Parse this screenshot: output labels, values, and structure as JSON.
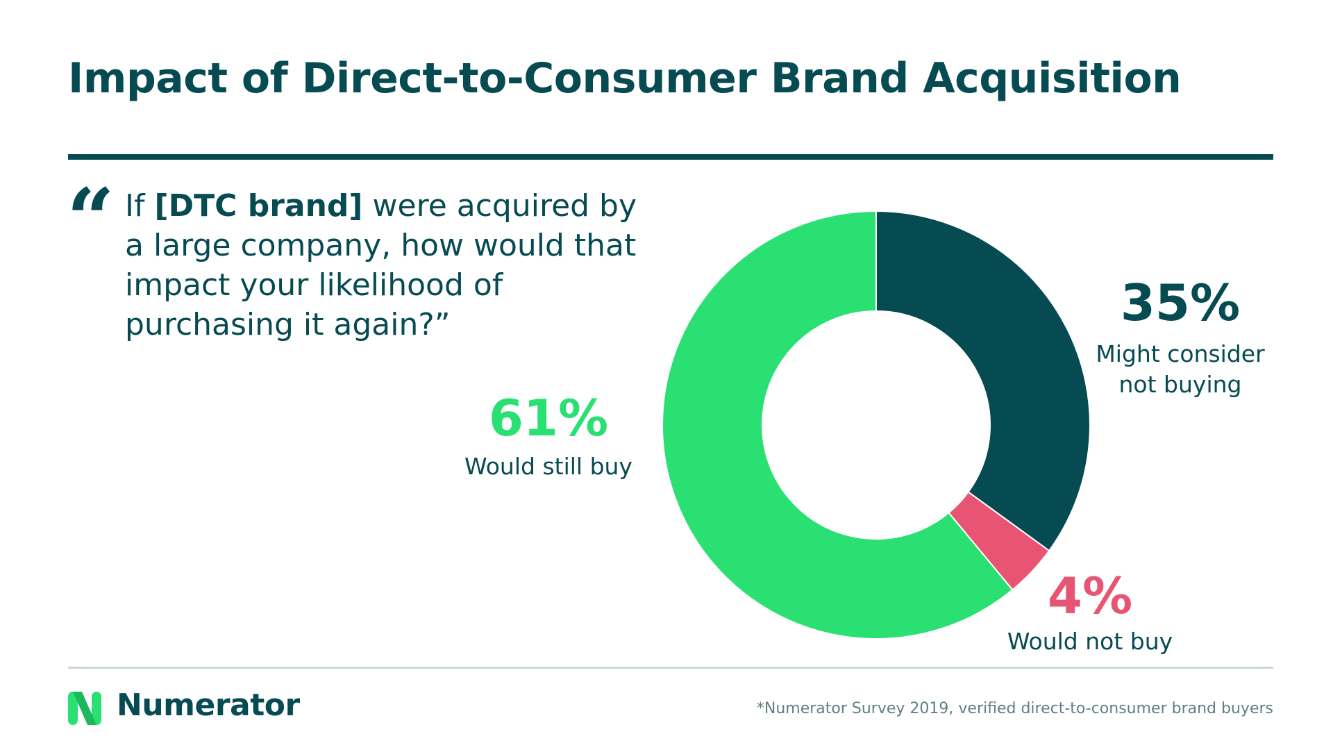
{
  "title": "Impact of Direct-to-Consumer Brand Acquisition",
  "question": {
    "pre": "If ",
    "bold": "[DTC brand]",
    "post": " were acquired by a large company, how would that impact your likelihood of purchasing it again?”"
  },
  "chart_data": {
    "type": "pie",
    "donut": true,
    "categories": [
      "Might consider not buying",
      "Would not buy",
      "Would still buy"
    ],
    "values": [
      35,
      4,
      61
    ],
    "value_labels": [
      "35%",
      "4%",
      "61%"
    ],
    "colors": [
      "#064A52",
      "#E85574",
      "#2AE072"
    ]
  },
  "labels": {
    "might": {
      "pct": "35%",
      "line1": "Might consider",
      "line2": "not buying"
    },
    "wouldnot": {
      "pct": "4%",
      "line1": "Would not buy"
    },
    "still": {
      "pct": "61%",
      "line1": "Would still buy"
    }
  },
  "brand": {
    "name": "Numerator",
    "colors": [
      "#2AE072",
      "#064A52"
    ]
  },
  "source": "*Numerator Survey 2019, verified direct-to-consumer brand buyers"
}
